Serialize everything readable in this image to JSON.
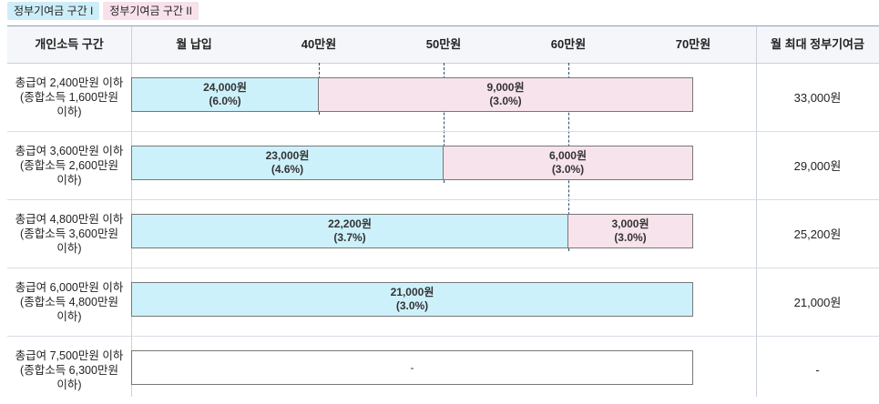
{
  "legend": {
    "section1": "정부기여금 구간 I",
    "section2": "정부기여금 구간 II"
  },
  "header": {
    "income_range": "개인소득 구간",
    "monthly_payment": "월 납입",
    "tick_40": "40만원",
    "tick_50": "50만원",
    "tick_60": "60만원",
    "tick_70": "70만원",
    "max_contribution": "월 최대 정부기여금"
  },
  "rows": [
    {
      "label_line1": "총급여 2,400만원 이하",
      "label_line2": "(종합소득 1,600만원",
      "label_line3": "이하)",
      "section1_amount": "24,000원",
      "section1_rate": "(6.0%)",
      "section1_limit_manwon": 40,
      "section2_amount": "9,000원",
      "section2_rate": "(3.0%)",
      "section2_limit_manwon": 70,
      "total": "33,000원"
    },
    {
      "label_line1": "총급여 3,600만원 이하",
      "label_line2": "(종합소득 2,600만원",
      "label_line3": "이하)",
      "section1_amount": "23,000원",
      "section1_rate": "(4.6%)",
      "section1_limit_manwon": 50,
      "section2_amount": "6,000원",
      "section2_rate": "(3.0%)",
      "section2_limit_manwon": 70,
      "total": "29,000원"
    },
    {
      "label_line1": "총급여 4,800만원 이하",
      "label_line2": "(종합소득 3,600만원",
      "label_line3": "이하)",
      "section1_amount": "22,200원",
      "section1_rate": "(3.7%)",
      "section1_limit_manwon": 60,
      "section2_amount": "3,000원",
      "section2_rate": "(3.0%)",
      "section2_limit_manwon": 70,
      "total": "25,200원"
    },
    {
      "label_line1": "총급여 6,000만원 이하",
      "label_line2": "(종합소득 4,800만원",
      "label_line3": "이하)",
      "section1_amount": "21,000원",
      "section1_rate": "(3.0%)",
      "section1_limit_manwon": 70,
      "total": "21,000원"
    },
    {
      "label_line1": "총급여 7,500만원 이하",
      "label_line2": "(종합소득 6,300만원",
      "label_line3": "이하)",
      "empty_text": "-",
      "total": "-"
    }
  ],
  "colors": {
    "section1": "#cdf1fb",
    "section2": "#f6e3eb",
    "dash": "#2a4a7a"
  }
}
